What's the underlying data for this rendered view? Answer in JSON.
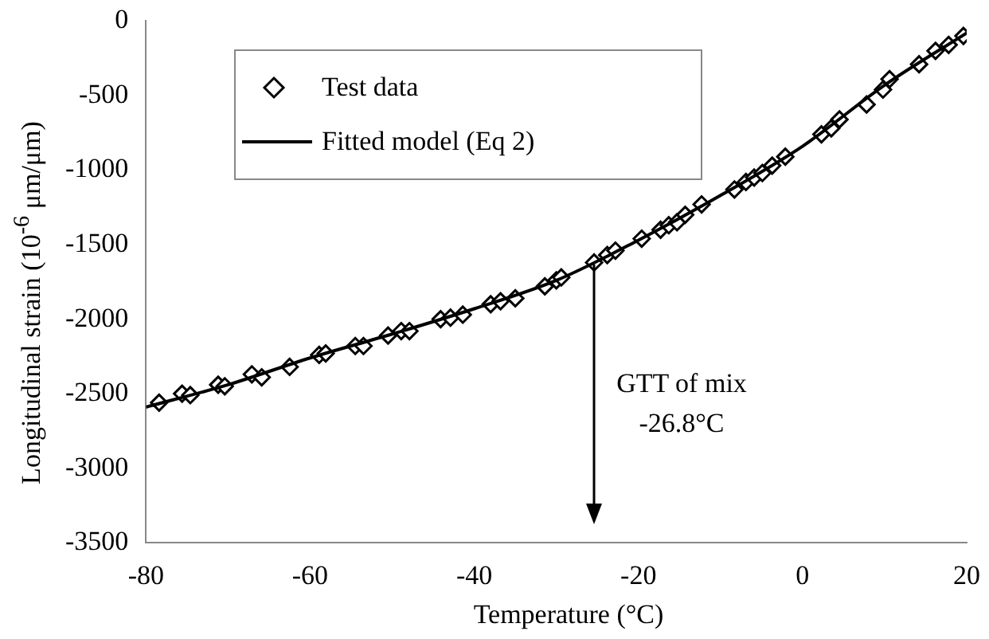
{
  "chart_data": {
    "type": "scatter",
    "xlabel": "Temperature (°C)",
    "ylabel": "Longitudinal strain (10$^{-6}$ μm/μm)",
    "xlim": [
      -80,
      20
    ],
    "xticks": [
      -80,
      -60,
      -40,
      -20,
      0,
      20
    ],
    "ylim": [
      -3500,
      0
    ],
    "yticks": [
      -3500,
      -3000,
      -2500,
      -2000,
      -1500,
      -1000,
      -500,
      0
    ],
    "grid": false,
    "legend": "top left",
    "annotations": [
      "GTT of mix\n-26.8°C"
    ],
    "series": [
      {
        "name": "Test data",
        "color": "#000000",
        "marker": "diamond",
        "x": [
          -78.4,
          -75.6,
          -74.6,
          -71.2,
          -70.4,
          -67.1,
          -65.9,
          -62.5,
          -58.9,
          -58.1,
          -54.5,
          -53.5,
          -50.5,
          -48.9,
          -47.9,
          -44.1,
          -42.9,
          -41.4,
          -38.0,
          -36.8,
          -35.0,
          -31.4,
          -30.0,
          -29.4,
          -25.4,
          -23.8,
          -22.8,
          -19.6,
          -17.3,
          -16.3,
          -15.3,
          -14.3,
          -12.3,
          -8.3,
          -6.9,
          -5.9,
          -4.9,
          -3.7,
          -2.1,
          2.3,
          3.5,
          4.5,
          7.8,
          9.8,
          10.6,
          14.2,
          16.2,
          17.8,
          19.6
        ],
        "values": [
          -2560,
          -2500,
          -2510,
          -2440,
          -2450,
          -2370,
          -2390,
          -2320,
          -2240,
          -2230,
          -2180,
          -2180,
          -2110,
          -2080,
          -2080,
          -2000,
          -1990,
          -1970,
          -1900,
          -1880,
          -1860,
          -1780,
          -1740,
          -1720,
          -1620,
          -1570,
          -1540,
          -1460,
          -1400,
          -1370,
          -1350,
          -1300,
          -1230,
          -1130,
          -1080,
          -1050,
          -1020,
          -970,
          -910,
          -760,
          -720,
          -660,
          -560,
          -460,
          -390,
          -290,
          -200,
          -160,
          -100
        ]
      },
      {
        "name": "Fitted model (Eq 2)",
        "type": "line",
        "color": "#000000",
        "marker": "none",
        "line_style": "solid",
        "x": [
          -80,
          -70,
          -60,
          -50,
          -40,
          -30,
          -20,
          -10,
          0,
          10,
          20
        ],
        "values": [
          -2590,
          -2440,
          -2260,
          -2100,
          -1930,
          -1740,
          -1470,
          -1170,
          -840,
          -430,
          -80
        ]
      }
    ]
  }
}
